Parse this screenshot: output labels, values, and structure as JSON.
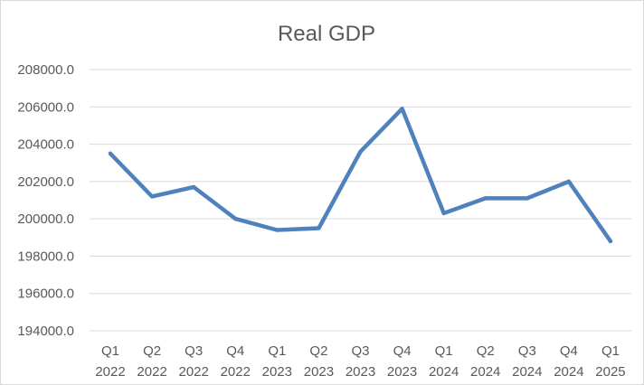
{
  "chart_data": {
    "type": "line",
    "title": "Real GDP",
    "xlabel": "",
    "ylabel": "",
    "categories": [
      [
        "Q1",
        "2022"
      ],
      [
        "Q2",
        "2022"
      ],
      [
        "Q3",
        "2022"
      ],
      [
        "Q4",
        "2022"
      ],
      [
        "Q1",
        "2023"
      ],
      [
        "Q2",
        "2023"
      ],
      [
        "Q3",
        "2023"
      ],
      [
        "Q4",
        "2023"
      ],
      [
        "Q1",
        "2024"
      ],
      [
        "Q2",
        "2024"
      ],
      [
        "Q3",
        "2024"
      ],
      [
        "Q4",
        "2024"
      ],
      [
        "Q1",
        "2025"
      ]
    ],
    "series": [
      {
        "values": [
          203500,
          201200,
          201700,
          200000,
          199400,
          199500,
          203600,
          205900,
          200300,
          201100,
          201100,
          202000,
          198800
        ]
      }
    ],
    "ylim": [
      194000,
      208000
    ],
    "yticks": [
      "194000.0",
      "196000.0",
      "198000.0",
      "200000.0",
      "202000.0",
      "204000.0",
      "206000.0",
      "208000.0"
    ],
    "grid": true,
    "legend": "none",
    "colors": {
      "line": "#4f81bd",
      "grid": "#d9d9d9",
      "text": "#595959"
    }
  }
}
